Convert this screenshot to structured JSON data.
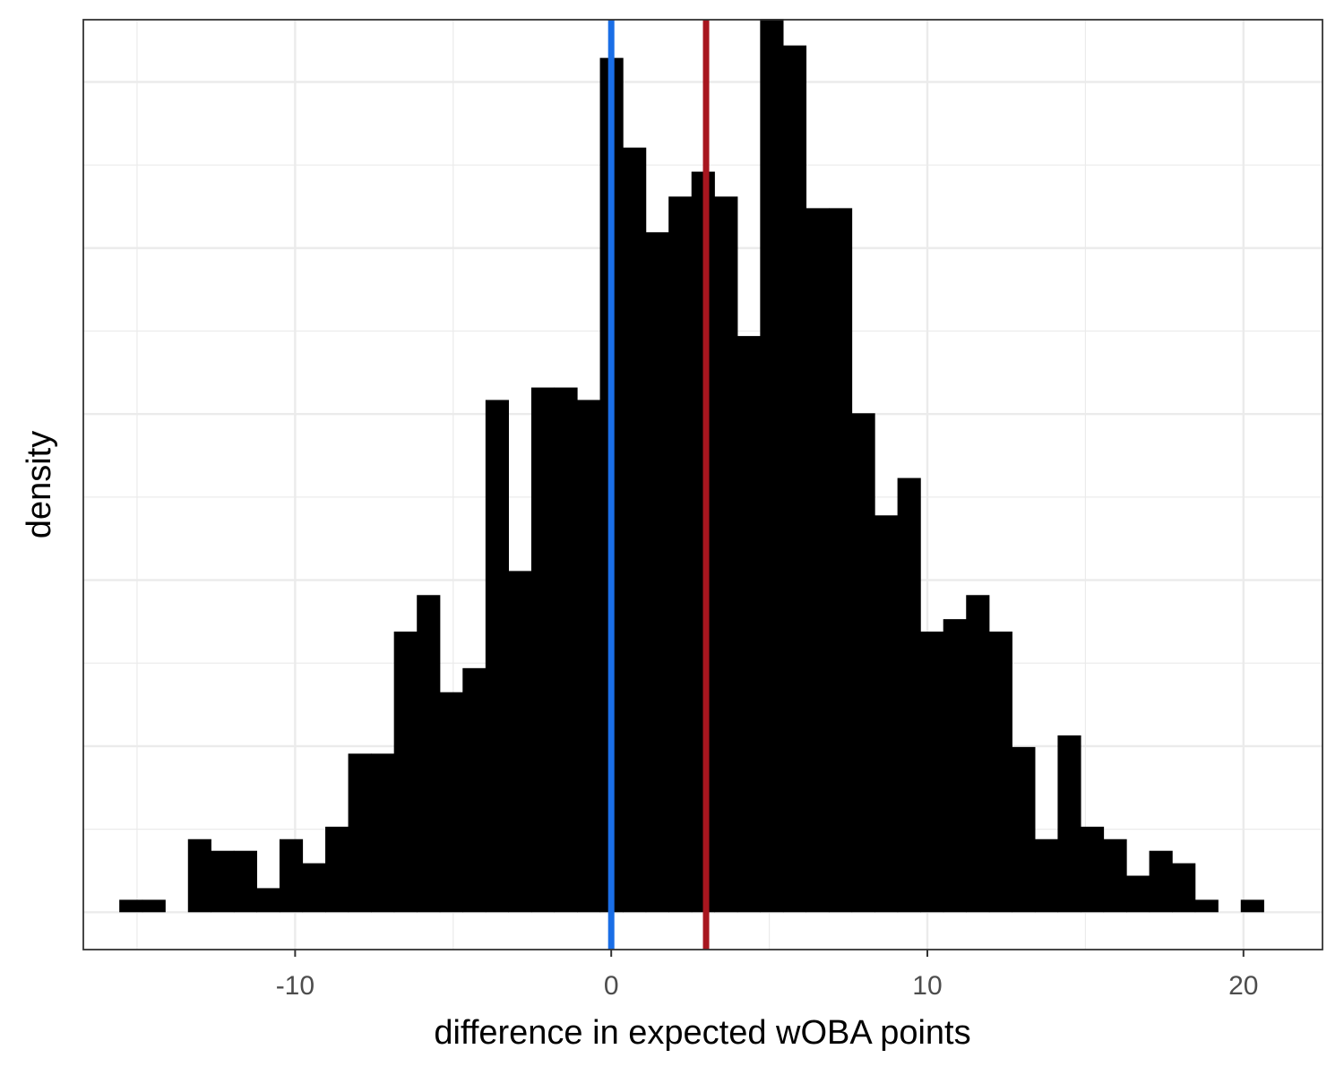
{
  "chart_data": {
    "type": "bar",
    "xlabel": "difference in expected wOBA points",
    "ylabel": "density",
    "xlim": [
      -16.7,
      22.5
    ],
    "ylim": [
      -0.0045,
      0.1075
    ],
    "x_ticks": [
      -10,
      0,
      10,
      20
    ],
    "x_tick_labels": [
      "-10",
      "0",
      "10",
      "20"
    ],
    "y_ticks_shown": false,
    "grid": true,
    "bin_width": 0.724,
    "bins": [
      {
        "x": -15.2,
        "y": 0.0015
      },
      {
        "x": -14.476,
        "y": 0.0015
      },
      {
        "x": -13.752,
        "y": 0
      },
      {
        "x": -13.028,
        "y": 0.0088
      },
      {
        "x": -12.304,
        "y": 0.0074
      },
      {
        "x": -11.58,
        "y": 0.0074
      },
      {
        "x": -10.856,
        "y": 0.0029
      },
      {
        "x": -10.132,
        "y": 0.0088
      },
      {
        "x": -9.408,
        "y": 0.0059
      },
      {
        "x": -8.684,
        "y": 0.0103
      },
      {
        "x": -7.96,
        "y": 0.0191
      },
      {
        "x": -7.236,
        "y": 0.0191
      },
      {
        "x": -6.512,
        "y": 0.0338
      },
      {
        "x": -5.788,
        "y": 0.0382
      },
      {
        "x": -5.064,
        "y": 0.0265
      },
      {
        "x": -4.34,
        "y": 0.0294
      },
      {
        "x": -3.616,
        "y": 0.0617
      },
      {
        "x": -2.892,
        "y": 0.0411
      },
      {
        "x": -2.168,
        "y": 0.0632
      },
      {
        "x": -1.444,
        "y": 0.0632
      },
      {
        "x": -0.72,
        "y": 0.0617
      },
      {
        "x": 0.004,
        "y": 0.1029
      },
      {
        "x": 0.728,
        "y": 0.0921
      },
      {
        "x": 1.452,
        "y": 0.0819
      },
      {
        "x": 2.176,
        "y": 0.0862
      },
      {
        "x": 2.9,
        "y": 0.0892
      },
      {
        "x": 3.624,
        "y": 0.0862
      },
      {
        "x": 4.348,
        "y": 0.0694
      },
      {
        "x": 5.072,
        "y": 0.1076
      },
      {
        "x": 5.796,
        "y": 0.1044
      },
      {
        "x": 6.52,
        "y": 0.0848
      },
      {
        "x": 7.244,
        "y": 0.0848
      },
      {
        "x": 7.968,
        "y": 0.0601
      },
      {
        "x": 8.692,
        "y": 0.0478
      },
      {
        "x": 9.416,
        "y": 0.0523
      },
      {
        "x": 10.14,
        "y": 0.0338
      },
      {
        "x": 10.864,
        "y": 0.0353
      },
      {
        "x": 11.588,
        "y": 0.0382
      },
      {
        "x": 12.312,
        "y": 0.0338
      },
      {
        "x": 13.036,
        "y": 0.0199
      },
      {
        "x": 13.76,
        "y": 0.0088
      },
      {
        "x": 14.484,
        "y": 0.0213
      },
      {
        "x": 15.208,
        "y": 0.0103
      },
      {
        "x": 15.932,
        "y": 0.0088
      },
      {
        "x": 16.656,
        "y": 0.0044
      },
      {
        "x": 17.38,
        "y": 0.0074
      },
      {
        "x": 18.104,
        "y": 0.0059
      },
      {
        "x": 18.828,
        "y": 0.0015
      },
      {
        "x": 19.552,
        "y": 0
      },
      {
        "x": 20.276,
        "y": 0.0015
      }
    ],
    "bar_color": "#000000",
    "vlines": [
      {
        "x": 0,
        "color": "#1a6ee6"
      },
      {
        "x": 3,
        "color": "#a8161f"
      }
    ]
  }
}
